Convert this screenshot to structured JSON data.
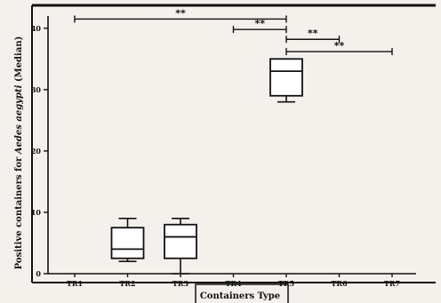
{
  "chart_data": {
    "type": "box",
    "title": "",
    "xlabel": "Containers Type",
    "ylabel_prefix": "Positive containers for ",
    "ylabel_italic": "Aedes aegypti",
    "ylabel_suffix": " (Median)",
    "ylim": [
      0,
      42
    ],
    "yticks": [
      0,
      10,
      20,
      30,
      40
    ],
    "categories": [
      "TR1",
      "TR2",
      "TR3",
      "TR4",
      "TR5",
      "TR6",
      "TR7"
    ],
    "boxes": [
      {
        "category": "TR2",
        "min": 2,
        "q1": 2.5,
        "median": 4,
        "q3": 7.5,
        "max": 9
      },
      {
        "category": "TR3",
        "min": 0,
        "q1": 2.5,
        "median": 6,
        "q3": 8,
        "max": 9
      },
      {
        "category": "TR5",
        "min": 28,
        "q1": 29,
        "median": 33,
        "q3": 35,
        "max": 35
      }
    ],
    "significance": [
      {
        "from": "TR1",
        "to": "TR5",
        "y": 41.5,
        "label": "**"
      },
      {
        "from": "TR4",
        "to": "TR5",
        "y": 39.8,
        "label": "**"
      },
      {
        "from": "TR5",
        "to": "TR6",
        "y": 38.2,
        "label": "**"
      },
      {
        "from": "TR5",
        "to": "TR7",
        "y": 36.2,
        "label": "**"
      }
    ],
    "grid": false,
    "legend": "none"
  }
}
